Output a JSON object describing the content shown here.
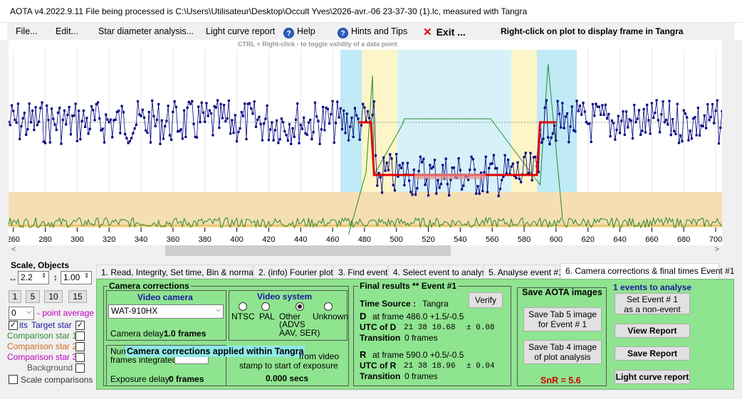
{
  "window": {
    "title": "AOTA v4.2022.9.11     File being processed is C:\\Users\\Utilisateur\\Desktop\\Occult Yves\\2026-avr.-06 23-37-30 (1).lc, measured with Tangra"
  },
  "menu": {
    "file": "File...",
    "edit": "Edit...",
    "star_diameter": "Star diameter analysis...",
    "light_curve_report": "Light curve report",
    "help": "Help",
    "hints": "Hints and Tips",
    "exit": "Exit ...",
    "right_click_note": "Right-click on plot to display frame in Tangra"
  },
  "hint_text": "CTRL + Right-click  -  to toggle validity of a data point",
  "plot": {
    "x_ticks": [
      "260",
      "280",
      "300",
      "320",
      "340",
      "360",
      "380",
      "400",
      "420",
      "440",
      "460",
      "480",
      "500",
      "520",
      "540",
      "560",
      "580",
      "600",
      "620",
      "640",
      "660",
      "680",
      "700"
    ]
  },
  "chart_data": {
    "type": "scatter",
    "x_range": [
      257,
      704
    ],
    "x_ticks": [
      260,
      280,
      300,
      320,
      340,
      360,
      380,
      400,
      420,
      440,
      460,
      480,
      500,
      520,
      540,
      560,
      580,
      600,
      620,
      640,
      660,
      680,
      700
    ],
    "series": [
      {
        "name": "Target star",
        "description_level": "baseline",
        "x_from": 257,
        "x_to": 486,
        "y_level": 1.0
      },
      {
        "name": "Target star",
        "description_level": "event",
        "x_from": 486,
        "x_to": 590,
        "y_level": 0.0
      },
      {
        "name": "Target star",
        "description_level": "baseline",
        "x_from": 590,
        "x_to": 704,
        "y_level": 1.0
      }
    ],
    "event": {
      "D_frame": 486.0,
      "R_frame": 590.0
    }
  },
  "left": {
    "scale_objects_label": "Scale,  Objects",
    "scale_h": "2.2",
    "scale_v": "1.00",
    "btn_1": "1",
    "btn_5": "5",
    "btn_10": "10",
    "btn_15": "15",
    "point_avg_value": "0",
    "point_avg_label": "- point average",
    "target_star": "Target star",
    "target_star_prefix": "its",
    "comp1": "Comparison star 1",
    "comp2": "Comparison star 2",
    "comp3": "Comparison star 3",
    "background": "Background",
    "scale_comparisons": "Scale comparisons"
  },
  "tabs": [
    "1.  Read, Integrity, Set time, Bin & normalise",
    "2. (info)  Fourier plot",
    "3. Find events",
    "4. Select event to analyse",
    "5. Analyse event #1",
    "6. Camera corrections & final times Event #1"
  ],
  "camera": {
    "title": "Camera corrections",
    "video_camera_label": "Video camera",
    "camera_model": "WAT-910HX",
    "camera_delay_label": "Camera delay:",
    "camera_delay_value": "1.0 frames",
    "video_system_label": "Video system",
    "ntsc": "NTSC",
    "pal": "PAL",
    "other": "Other",
    "other_sub": "(ADVS\nAAV, SER)",
    "unknown": "Unknown",
    "num_label": "Num",
    "frames_integrated": "frames integrated",
    "tangra_banner": "Camera corrections applied within Tangra",
    "from_video": "from video",
    "stamp_text": "stamp to start of exposure",
    "exposure_delay_label": "Exposure delay:",
    "exposure_delay_value": "0 frames",
    "secs_value": "0.000 secs"
  },
  "results": {
    "title": "Final results   **   Event #1",
    "time_source_label": "Time Source :",
    "time_source_value": "Tangra",
    "verify": "Verify",
    "d_label": "D",
    "d_frame": "at frame 486.0  +1.5/-0.5",
    "utc_d_label": "UTC of D",
    "utc_d_value": "21 38 10.68",
    "utc_d_err": "± 0.08",
    "transition_label": "Transition",
    "transition_d_value": "0 frames",
    "r_label": "R",
    "r_frame": "at frame 590.0  +0.5/-0.5",
    "utc_r_label": "UTC of R",
    "utc_r_value": "21 38 18.96",
    "utc_r_err": "± 0.04",
    "transition_r_value": "0 frames"
  },
  "save": {
    "title": "Save AOTA images",
    "tab5_btn": "Save Tab 5 image\nfor Event # 1",
    "tab4_btn": "Save Tab 4 image\nof plot analysis",
    "snr": "SnR = 5.6"
  },
  "events": {
    "title": "1  events to analyse",
    "set_event_btn": "Set Event # 1\nas a non-event",
    "view_report": "View Report",
    "save_report": "Save Report",
    "lc_report": "Light curve report"
  },
  "colors": {
    "panel_green": "#8fe48f",
    "plot_tan": "#f5deb3",
    "data_blue": "#000080",
    "fit_red": "#e00000"
  }
}
